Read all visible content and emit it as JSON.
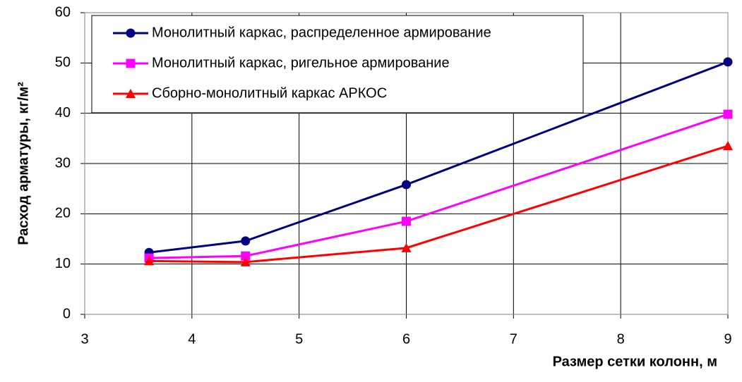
{
  "chart_data": {
    "type": "line",
    "x_label": "Размер сетки колонн, м",
    "y_label": "Расход арматуры, кг/м²",
    "x": [
      3.6,
      4.5,
      6,
      9
    ],
    "series": [
      {
        "name": "Монолитный каркас, распределенное армирование",
        "color": "#000080",
        "marker": "circle",
        "values": [
          12.3,
          14.6,
          25.8,
          50.2
        ]
      },
      {
        "name": "Монолитный каркас, ригельное армирование",
        "color": "#ff00ff",
        "marker": "square",
        "values": [
          11.2,
          11.6,
          18.5,
          39.8
        ]
      },
      {
        "name": "Сборно-монолитный каркас АРКОС",
        "color": "#ff0000",
        "marker": "triangle",
        "values": [
          10.6,
          10.4,
          13.2,
          33.5
        ]
      }
    ],
    "xlim": [
      3,
      9
    ],
    "xticks": [
      3,
      4,
      5,
      6,
      7,
      8,
      9
    ],
    "ylim": [
      0,
      60
    ],
    "yticks": [
      0,
      10,
      20,
      30,
      40,
      50,
      60
    ],
    "grid": true,
    "legend": "top-left"
  }
}
